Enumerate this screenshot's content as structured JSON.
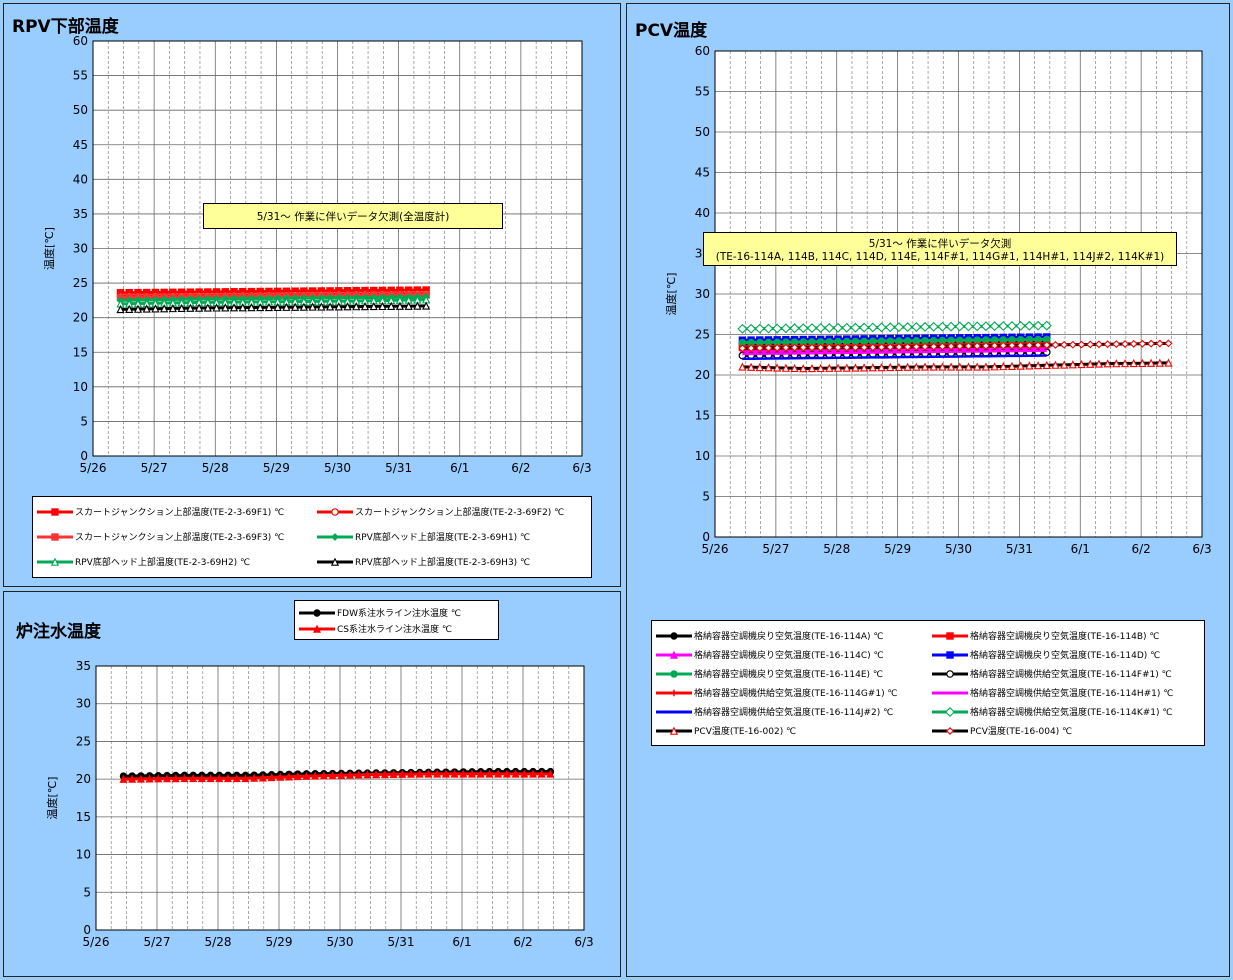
{
  "chart_data": [
    {
      "type": "line",
      "title": "RPV下部温度",
      "ylabel": "温度[℃]",
      "xlabel": "",
      "ylim": [
        0,
        60
      ],
      "yticks": [
        0,
        5,
        10,
        15,
        20,
        25,
        30,
        35,
        40,
        45,
        50,
        55,
        60
      ],
      "xticks": [
        "5/26",
        "5/27",
        "5/28",
        "5/29",
        "5/30",
        "5/31",
        "6/1",
        "6/2",
        "6/3"
      ],
      "xlim": [
        0,
        8
      ],
      "grid": true,
      "annotation": "5/31～ 作業に伴いデータ欠測(全温度計)",
      "series": [
        {
          "name": "スカートジャンクション上部温度(TE-2-3-69F1) ℃",
          "color": "#ff0000",
          "marker": "square",
          "x_start": 0.45,
          "x_end": 5.45,
          "values": [
            23.6,
            23.7,
            23.8,
            23.9,
            24.0
          ]
        },
        {
          "name": "スカートジャンクション上部温度(TE-2-3-69F2) ℃",
          "color": "#ff0000",
          "marker": "circle-open",
          "x_start": 0.45,
          "x_end": 5.45,
          "values": [
            23.1,
            23.2,
            23.3,
            23.4,
            23.5
          ]
        },
        {
          "name": "スカートジャンクション上部温度(TE-2-3-69F3) ℃",
          "color": "#ff3333",
          "marker": "square-filled",
          "x_start": 0.45,
          "x_end": 5.45,
          "values": [
            22.9,
            23.0,
            23.1,
            23.2,
            23.3
          ]
        },
        {
          "name": "RPV底部ヘッド上部温度(TE-2-3-69H1) ℃",
          "color": "#00aa55",
          "marker": "diamond",
          "x_start": 0.45,
          "x_end": 5.45,
          "values": [
            22.5,
            22.7,
            22.8,
            22.9,
            23.0
          ]
        },
        {
          "name": "RPV底部ヘッド上部温度(TE-2-3-69H2) ℃",
          "color": "#00aa55",
          "marker": "triangle-open",
          "x_start": 0.45,
          "x_end": 5.45,
          "values": [
            22.0,
            22.2,
            22.3,
            22.4,
            22.6
          ]
        },
        {
          "name": "RPV底部ヘッド上部温度(TE-2-3-69H3) ℃",
          "color": "#000000",
          "marker": "triangle-open",
          "x_start": 0.45,
          "x_end": 5.45,
          "values": [
            21.2,
            21.4,
            21.5,
            21.6,
            21.7
          ]
        }
      ]
    },
    {
      "type": "line",
      "title": "PCV温度",
      "ylabel": "温度[℃]",
      "xlabel": "",
      "ylim": [
        0,
        60
      ],
      "yticks": [
        0,
        5,
        10,
        15,
        20,
        25,
        30,
        35,
        40,
        45,
        50,
        55,
        60
      ],
      "xticks": [
        "5/26",
        "5/27",
        "5/28",
        "5/29",
        "5/30",
        "5/31",
        "6/1",
        "6/2",
        "6/3"
      ],
      "xlim": [
        0,
        8
      ],
      "grid": true,
      "annotation": [
        "5/31～ 作業に伴いデータ欠測",
        "(TE-16-114A, 114B, 114C, 114D, 114E, 114F#1, 114G#1, 114H#1, 114J#2, 114K#1)"
      ],
      "series": [
        {
          "name": "格納容器空調機戻り空気温度(TE-16-114A) ℃",
          "color": "#000000",
          "marker": "circle",
          "x_start": 0.45,
          "x_end": 5.45,
          "values": [
            23.8,
            23.9,
            24.0,
            24.1,
            24.2
          ]
        },
        {
          "name": "格納容器空調機戻り空気温度(TE-16-114B) ℃",
          "color": "#ff0000",
          "marker": "square",
          "x_start": 0.45,
          "x_end": 5.45,
          "values": [
            23.4,
            23.5,
            23.6,
            23.7,
            23.8
          ]
        },
        {
          "name": "格納容器空調機戻り空気温度(TE-16-114C) ℃",
          "color": "#ff00ff",
          "marker": "triangle",
          "x_start": 0.45,
          "x_end": 5.45,
          "values": [
            22.9,
            23.0,
            23.1,
            23.2,
            23.3
          ]
        },
        {
          "name": "格納容器空調機戻り空気温度(TE-16-114D) ℃",
          "color": "#0000ff",
          "marker": "square",
          "x_start": 0.45,
          "x_end": 5.45,
          "values": [
            24.3,
            24.4,
            24.5,
            24.6,
            24.7
          ]
        },
        {
          "name": "格納容器空調機戻り空気温度(TE-16-114E) ℃",
          "color": "#00aa55",
          "marker": "circle",
          "x_start": 0.45,
          "x_end": 5.45,
          "values": [
            24.0,
            24.1,
            24.2,
            24.3,
            24.4
          ]
        },
        {
          "name": "格納容器空調機供給空気温度(TE-16-114F#1) ℃",
          "color": "#000000",
          "marker": "circle-open",
          "x_start": 0.45,
          "x_end": 5.45,
          "values": [
            22.4,
            22.5,
            22.6,
            22.7,
            22.8
          ]
        },
        {
          "name": "格納容器空調機供給空気温度(TE-16-114G#1) ℃",
          "color": "#ff0000",
          "marker": "plus",
          "x_start": 0.45,
          "x_end": 5.45,
          "values": [
            23.2,
            23.3,
            23.4,
            23.5,
            23.6
          ]
        },
        {
          "name": "格納容器空調機供給空気温度(TE-16-114H#1) ℃",
          "color": "#ff00ff",
          "marker": "none",
          "x_start": 0.45,
          "x_end": 5.45,
          "values": [
            22.6,
            22.7,
            22.8,
            22.9,
            23.0
          ]
        },
        {
          "name": "格納容器空調機供給空気温度(TE-16-114J#2) ℃",
          "color": "#0000ff",
          "marker": "none",
          "x_start": 0.45,
          "x_end": 5.45,
          "values": [
            22.0,
            22.1,
            22.2,
            22.3,
            22.4
          ]
        },
        {
          "name": "格納容器空調機供給空気温度(TE-16-114K#1) ℃",
          "color": "#00aa55",
          "marker": "diamond-open",
          "x_start": 0.45,
          "x_end": 5.45,
          "values": [
            25.7,
            25.8,
            25.9,
            26.0,
            26.1
          ]
        },
        {
          "name": "PCV温度(TE-16-002) ℃",
          "color": "#000000",
          "marker": "triangle-red",
          "x_start": 0.45,
          "x_end": 7.45,
          "values": [
            21.0,
            20.8,
            20.9,
            21.0,
            21.0,
            21.2,
            21.4,
            21.5
          ]
        },
        {
          "name": "PCV温度(TE-16-004) ℃",
          "color": "#000000",
          "marker": "diamond-red",
          "x_start": 0.45,
          "x_end": 7.45,
          "values": [
            23.3,
            23.4,
            23.4,
            23.5,
            23.6,
            23.7,
            23.8,
            23.9
          ]
        }
      ]
    },
    {
      "type": "line",
      "title": "炉注水温度",
      "ylabel": "温度[℃]",
      "xlabel": "",
      "ylim": [
        0,
        35
      ],
      "yticks": [
        0,
        5,
        10,
        15,
        20,
        25,
        30,
        35
      ],
      "xticks": [
        "5/26",
        "5/27",
        "5/28",
        "5/29",
        "5/30",
        "5/31",
        "6/1",
        "6/2",
        "6/3"
      ],
      "xlim": [
        0,
        8
      ],
      "grid": true,
      "series": [
        {
          "name": "FDW系注水ライン注水温度 ℃",
          "color": "#000000",
          "marker": "circle",
          "x_start": 0.45,
          "x_end": 7.45,
          "values": [
            20.4,
            20.5,
            20.5,
            20.7,
            20.8,
            20.9,
            21.0,
            21.0
          ]
        },
        {
          "name": "CS系注水ライン注水温度 ℃",
          "color": "#ff0000",
          "marker": "triangle",
          "x_start": 0.45,
          "x_end": 7.45,
          "values": [
            20.0,
            20.1,
            20.1,
            20.4,
            20.6,
            20.7,
            20.7,
            20.7
          ]
        }
      ]
    }
  ]
}
